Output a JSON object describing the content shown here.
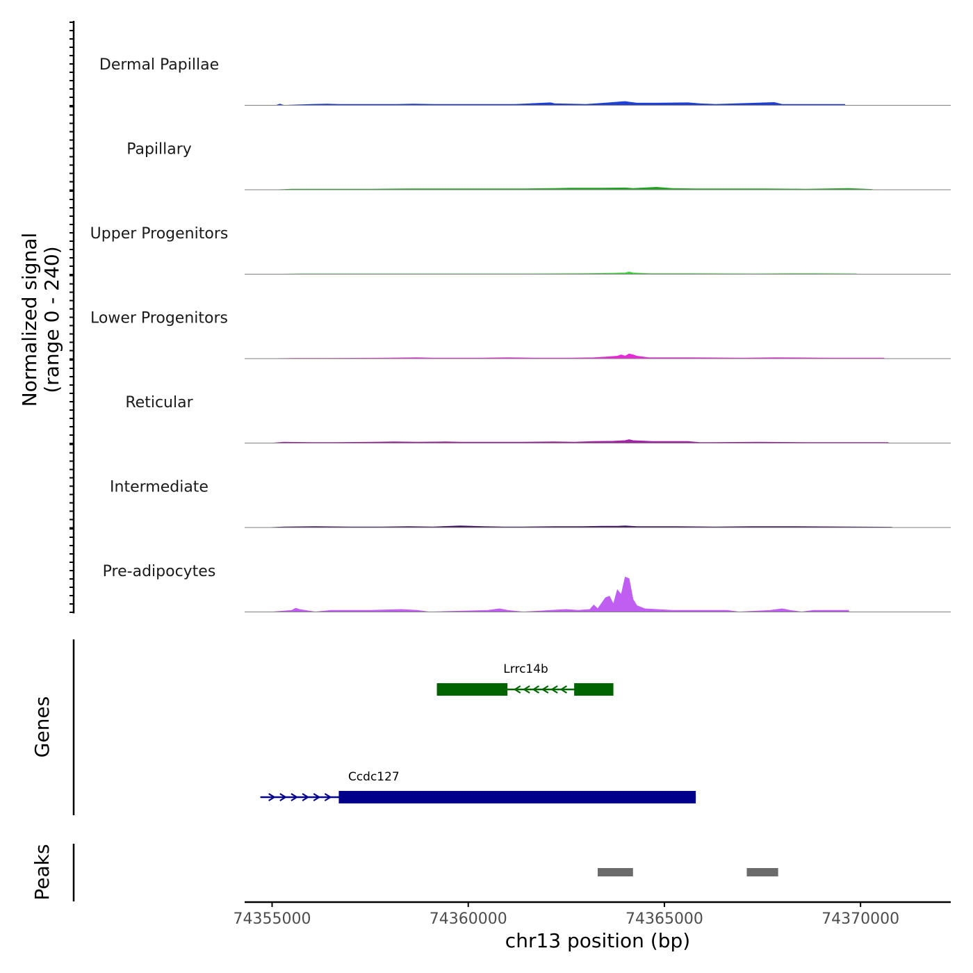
{
  "chart_data": {
    "type": "area",
    "title": "",
    "xlabel": "chr13 position (bp)",
    "ylabel": "Normalized signal\n(range 0 - 240)",
    "signal_range": [
      0,
      240
    ],
    "xlim": [
      74354300,
      74372300
    ],
    "x_ticks": [
      "74355000",
      "74360000",
      "74365000",
      "74370000"
    ],
    "x_tick_values": [
      74355000,
      74360000,
      74365000,
      74370000
    ],
    "tracks": [
      {
        "name": "Dermal Papillae",
        "color": "#1f3fd6",
        "points": [
          [
            74355100,
            0
          ],
          [
            74355200,
            4
          ],
          [
            74355300,
            0
          ],
          [
            74356000,
            3
          ],
          [
            74356400,
            4
          ],
          [
            74356700,
            3
          ],
          [
            74357000,
            3
          ],
          [
            74358200,
            3
          ],
          [
            74358600,
            4
          ],
          [
            74359100,
            3
          ],
          [
            74360200,
            3
          ],
          [
            74361200,
            3
          ],
          [
            74362100,
            8
          ],
          [
            74362200,
            5
          ],
          [
            74363000,
            3
          ],
          [
            74363600,
            8
          ],
          [
            74363800,
            10
          ],
          [
            74364000,
            12
          ],
          [
            74364100,
            10
          ],
          [
            74364300,
            7
          ],
          [
            74364800,
            7
          ],
          [
            74365600,
            8
          ],
          [
            74365900,
            5
          ],
          [
            74366300,
            3
          ],
          [
            74367800,
            9
          ],
          [
            74368000,
            3
          ],
          [
            74369200,
            3
          ],
          [
            74369600,
            3
          ]
        ]
      },
      {
        "name": "Papillary",
        "color": "#1fa31f",
        "points": [
          [
            74355100,
            0
          ],
          [
            74355500,
            2
          ],
          [
            74356300,
            2
          ],
          [
            74357500,
            2
          ],
          [
            74358500,
            3
          ],
          [
            74359500,
            3
          ],
          [
            74360600,
            3
          ],
          [
            74361500,
            3
          ],
          [
            74362200,
            4
          ],
          [
            74362600,
            5
          ],
          [
            74363000,
            5
          ],
          [
            74363400,
            5
          ],
          [
            74364000,
            6
          ],
          [
            74364200,
            4
          ],
          [
            74364800,
            8
          ],
          [
            74365200,
            4
          ],
          [
            74365800,
            3
          ],
          [
            74366700,
            3
          ],
          [
            74367600,
            3
          ],
          [
            74368600,
            2
          ],
          [
            74369700,
            4
          ],
          [
            74370300,
            1
          ]
        ]
      },
      {
        "name": "Upper Progenitors",
        "color": "#3fd13f",
        "points": [
          [
            74355100,
            0
          ],
          [
            74355700,
            1
          ],
          [
            74357300,
            1
          ],
          [
            74358600,
            1
          ],
          [
            74360400,
            1
          ],
          [
            74361500,
            1
          ],
          [
            74363000,
            2
          ],
          [
            74363600,
            3
          ],
          [
            74364000,
            4
          ],
          [
            74364100,
            7
          ],
          [
            74364200,
            4
          ],
          [
            74364600,
            2
          ],
          [
            74365500,
            2
          ],
          [
            74367300,
            1
          ],
          [
            74368700,
            2
          ],
          [
            74369900,
            1
          ]
        ]
      },
      {
        "name": "Lower Progenitors",
        "color": "#e629d6",
        "points": [
          [
            74354900,
            0
          ],
          [
            74355600,
            1
          ],
          [
            74356600,
            1
          ],
          [
            74357900,
            2
          ],
          [
            74358700,
            3
          ],
          [
            74359100,
            2
          ],
          [
            74360300,
            2
          ],
          [
            74361000,
            3
          ],
          [
            74361700,
            2
          ],
          [
            74362600,
            2
          ],
          [
            74363200,
            3
          ],
          [
            74363500,
            5
          ],
          [
            74363800,
            8
          ],
          [
            74363900,
            12
          ],
          [
            74364000,
            8
          ],
          [
            74364100,
            15
          ],
          [
            74364200,
            12
          ],
          [
            74364300,
            8
          ],
          [
            74364600,
            3
          ],
          [
            74365600,
            3
          ],
          [
            74367000,
            2
          ],
          [
            74367800,
            3
          ],
          [
            74369200,
            2
          ],
          [
            74370600,
            2
          ]
        ]
      },
      {
        "name": "Reticular",
        "color": "#a522a8",
        "points": [
          [
            74355000,
            0
          ],
          [
            74355300,
            3
          ],
          [
            74356000,
            2
          ],
          [
            74356600,
            2
          ],
          [
            74357600,
            3
          ],
          [
            74358100,
            4
          ],
          [
            74358700,
            3
          ],
          [
            74359400,
            4
          ],
          [
            74359800,
            3
          ],
          [
            74360600,
            3
          ],
          [
            74361400,
            3
          ],
          [
            74362200,
            4
          ],
          [
            74362700,
            3
          ],
          [
            74363200,
            5
          ],
          [
            74363700,
            6
          ],
          [
            74364000,
            8
          ],
          [
            74364100,
            11
          ],
          [
            74364200,
            8
          ],
          [
            74364700,
            5
          ],
          [
            74365600,
            5
          ],
          [
            74365900,
            2
          ],
          [
            74366200,
            2
          ],
          [
            74367400,
            3
          ],
          [
            74368600,
            2
          ],
          [
            74370700,
            2
          ]
        ]
      },
      {
        "name": "Intermediate",
        "color": "#3a0e5c",
        "points": [
          [
            74354900,
            0
          ],
          [
            74355300,
            2
          ],
          [
            74356100,
            3
          ],
          [
            74357000,
            2
          ],
          [
            74357800,
            2
          ],
          [
            74358500,
            3
          ],
          [
            74359100,
            2
          ],
          [
            74359800,
            5
          ],
          [
            74360400,
            3
          ],
          [
            74360900,
            2
          ],
          [
            74361400,
            2
          ],
          [
            74362200,
            3
          ],
          [
            74362900,
            3
          ],
          [
            74363400,
            4
          ],
          [
            74363800,
            4
          ],
          [
            74364000,
            5
          ],
          [
            74364300,
            3
          ],
          [
            74364800,
            3
          ],
          [
            74365300,
            3
          ],
          [
            74366300,
            2
          ],
          [
            74367200,
            3
          ],
          [
            74368200,
            3
          ],
          [
            74369800,
            2
          ],
          [
            74370800,
            1
          ]
        ]
      },
      {
        "name": "Pre-adipocytes",
        "color": "#c15ef2",
        "points": [
          [
            74355000,
            0
          ],
          [
            74355500,
            5
          ],
          [
            74355600,
            12
          ],
          [
            74355700,
            8
          ],
          [
            74356100,
            0
          ],
          [
            74356500,
            5
          ],
          [
            74357500,
            5
          ],
          [
            74358300,
            8
          ],
          [
            74358700,
            5
          ],
          [
            74359000,
            0
          ],
          [
            74360500,
            5
          ],
          [
            74360800,
            10
          ],
          [
            74361000,
            5
          ],
          [
            74361400,
            0
          ],
          [
            74362100,
            5
          ],
          [
            74362500,
            8
          ],
          [
            74362800,
            5
          ],
          [
            74363100,
            8
          ],
          [
            74363200,
            22
          ],
          [
            74363300,
            10
          ],
          [
            74363500,
            45
          ],
          [
            74363600,
            50
          ],
          [
            74363700,
            25
          ],
          [
            74363800,
            70
          ],
          [
            74363900,
            55
          ],
          [
            74364000,
            110
          ],
          [
            74364100,
            105
          ],
          [
            74364200,
            40
          ],
          [
            74364300,
            20
          ],
          [
            74364500,
            10
          ],
          [
            74365200,
            5
          ],
          [
            74365800,
            5
          ],
          [
            74366600,
            5
          ],
          [
            74366900,
            0
          ],
          [
            74367700,
            5
          ],
          [
            74368000,
            10
          ],
          [
            74368200,
            5
          ],
          [
            74368500,
            0
          ],
          [
            74368800,
            5
          ],
          [
            74369200,
            5
          ],
          [
            74369700,
            5
          ]
        ]
      }
    ],
    "genes": [
      {
        "name": "Lrrc14b",
        "strand": "-",
        "color": "#006400",
        "start": 74359200,
        "end": 74363700,
        "exons": [
          [
            74359200,
            74361000
          ],
          [
            74362700,
            74363700
          ]
        ]
      },
      {
        "name": "Ccdc127",
        "strand": "+",
        "color": "#00008b",
        "start": 74354700,
        "end": 74365800,
        "exons": [
          [
            74356700,
            74365800
          ]
        ]
      }
    ],
    "peaks": [
      [
        74363300,
        74364200
      ],
      [
        74367100,
        74367900
      ]
    ],
    "panel_labels": {
      "genes": "Genes",
      "peaks": "Peaks"
    }
  }
}
